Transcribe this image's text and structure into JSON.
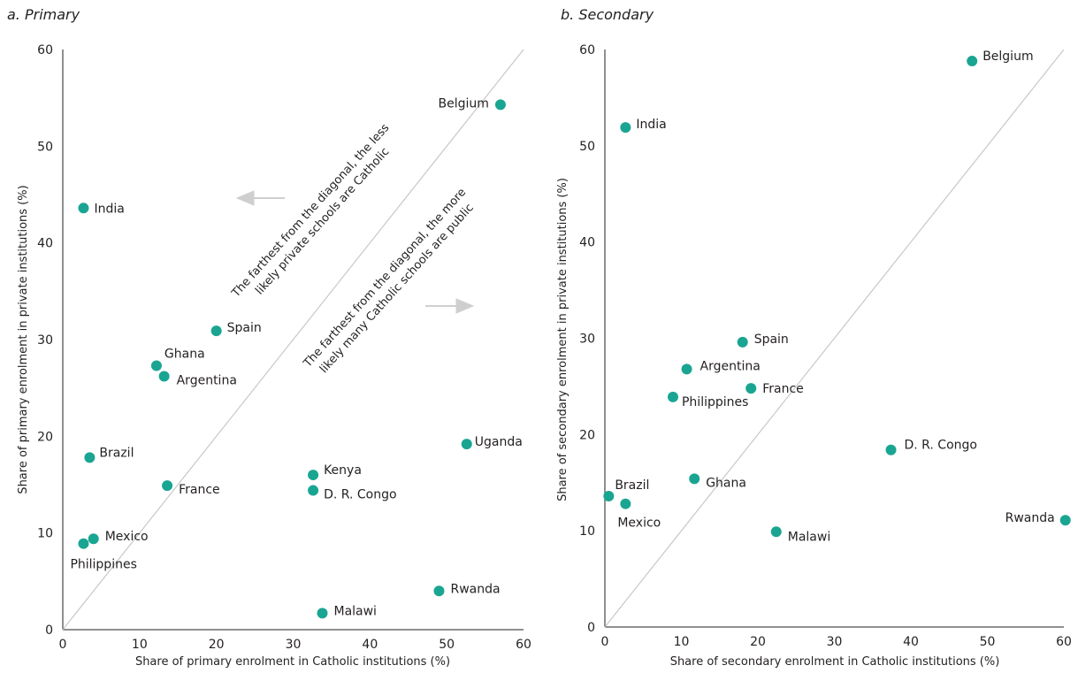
{
  "colors": {
    "point": "#1aa592",
    "diagonal": "#c8c8c8",
    "arrow": "#cfcfcf",
    "text": "#231f20"
  },
  "chart_data": [
    {
      "type": "scatter",
      "title": "a. Primary",
      "xlabel": "Share of primary enrolment in Catholic institutions (%)",
      "ylabel": "Share of primary enrolment in private institutions (%)",
      "xlim": [
        0,
        60
      ],
      "ylim": [
        0,
        60
      ],
      "xticks": [
        "0",
        "10",
        "20",
        "30",
        "40",
        "50",
        "60"
      ],
      "yticks": [
        "0",
        "10",
        "20",
        "30",
        "40",
        "50",
        "60"
      ],
      "diagonal": true,
      "grid": false,
      "annotations": [
        [
          "The farthest from the diagonal, the less",
          "likely private schools are Catholic"
        ],
        [
          "The farthest from the diagonal, the more",
          "likely many Catholic schools are public"
        ]
      ],
      "points": [
        {
          "label": "Belgium",
          "x": 57,
          "y": 54.3
        },
        {
          "label": "India",
          "x": 2.7,
          "y": 43.6
        },
        {
          "label": "Spain",
          "x": 20,
          "y": 30.9
        },
        {
          "label": "Ghana",
          "x": 12.2,
          "y": 27.3
        },
        {
          "label": "Argentina",
          "x": 13.2,
          "y": 26.2
        },
        {
          "label": "Uganda",
          "x": 52.6,
          "y": 19.2
        },
        {
          "label": "Brazil",
          "x": 3.5,
          "y": 17.8
        },
        {
          "label": "Kenya",
          "x": 32.6,
          "y": 16.0
        },
        {
          "label": "France",
          "x": 13.6,
          "y": 14.9
        },
        {
          "label": "D. R. Congo",
          "x": 32.6,
          "y": 14.4
        },
        {
          "label": "Mexico",
          "x": 4.0,
          "y": 9.4
        },
        {
          "label": "Philippines",
          "x": 2.7,
          "y": 8.9
        },
        {
          "label": "Rwanda",
          "x": 49,
          "y": 4.0
        },
        {
          "label": "Malawi",
          "x": 33.8,
          "y": 1.7
        }
      ]
    },
    {
      "type": "scatter",
      "title": "b. Secondary",
      "xlabel": "Share of secondary enrolment in Catholic institutions (%)",
      "ylabel": "Share of secondary enrolment in private institutions (%)",
      "xlim": [
        0,
        60
      ],
      "ylim": [
        0,
        60
      ],
      "xticks": [
        "0",
        "10",
        "20",
        "30",
        "40",
        "50",
        "60"
      ],
      "yticks": [
        "0",
        "10",
        "20",
        "30",
        "40",
        "50",
        "60"
      ],
      "diagonal": true,
      "grid": false,
      "points": [
        {
          "label": "Belgium",
          "x": 48,
          "y": 58.8
        },
        {
          "label": "India",
          "x": 2.7,
          "y": 51.9
        },
        {
          "label": "Spain",
          "x": 18,
          "y": 29.6
        },
        {
          "label": "Argentina",
          "x": 10.7,
          "y": 26.8
        },
        {
          "label": "France",
          "x": 19.1,
          "y": 24.8
        },
        {
          "label": "Philippines",
          "x": 8.9,
          "y": 23.9
        },
        {
          "label": "D. R. Congo",
          "x": 37.4,
          "y": 18.4
        },
        {
          "label": "Ghana",
          "x": 11.7,
          "y": 15.4
        },
        {
          "label": "Brazil",
          "x": 0.5,
          "y": 13.6
        },
        {
          "label": "Mexico",
          "x": 2.7,
          "y": 12.8
        },
        {
          "label": "Rwanda",
          "x": 60.2,
          "y": 11.1
        },
        {
          "label": "Malawi",
          "x": 22.4,
          "y": 9.9
        }
      ]
    }
  ]
}
